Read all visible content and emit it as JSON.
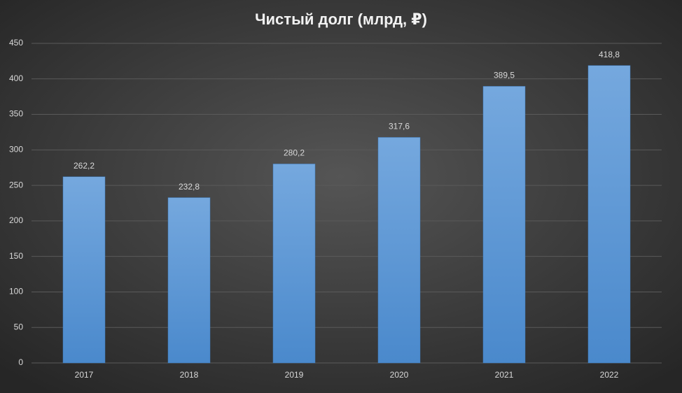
{
  "chart_data": {
    "type": "bar",
    "title": "Чистый долг (млрд, ₽)",
    "categories": [
      "2017",
      "2018",
      "2019",
      "2020",
      "2021",
      "2022"
    ],
    "values": [
      262.2,
      232.8,
      280.2,
      317.6,
      389.5,
      418.8
    ],
    "value_labels": [
      "262,2",
      "232,8",
      "280,2",
      "317,6",
      "389,5",
      "418,8"
    ],
    "color": "#5b9bd5",
    "ylim": [
      0,
      450
    ],
    "yticks": [
      0,
      50,
      100,
      150,
      200,
      250,
      300,
      350,
      400,
      450
    ],
    "grid": true
  }
}
